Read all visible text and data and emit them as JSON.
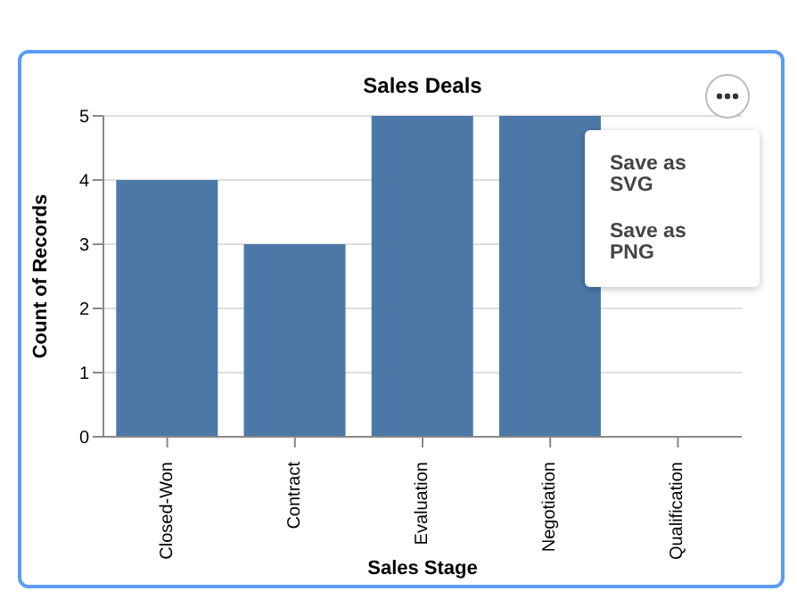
{
  "chart_data": {
    "type": "bar",
    "title": "Sales Deals",
    "xlabel": "Sales Stage",
    "ylabel": "Count of Records",
    "categories": [
      "Closed-Won",
      "Contract",
      "Evaluation",
      "Negotiation",
      "Qualification"
    ],
    "values": [
      4,
      3,
      5,
      5,
      null
    ],
    "color": "#4c78a8",
    "ylim": [
      0,
      5
    ],
    "yticks": [
      0,
      1,
      2,
      3,
      4,
      5
    ],
    "grid": "y",
    "annotations": [
      "Save as SVG",
      "Save as PNG"
    ]
  }
}
